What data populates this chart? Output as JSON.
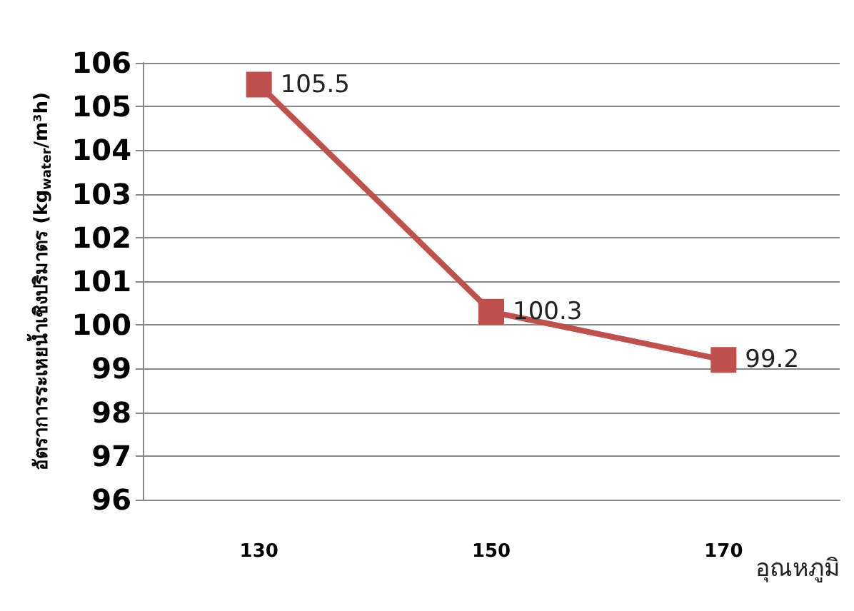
{
  "chart_data": {
    "type": "line",
    "xlabel": "อุณหภูมิ",
    "ylabel": "อัตราการระเหยน้ำเชิงปริมาตร (kg$_{water}$/m³h)",
    "categories": [
      "130",
      "150",
      "170"
    ],
    "series": [
      {
        "color": "#c0504d",
        "values": [
          105.5,
          100.3,
          99.2
        ]
      }
    ],
    "ylim": [
      96,
      106
    ],
    "yticks": [
      96,
      97,
      98,
      99,
      100,
      101,
      102,
      103,
      104,
      105,
      106
    ],
    "grid": "y",
    "marker": "square",
    "line_style": "solid",
    "data_labels": true
  }
}
